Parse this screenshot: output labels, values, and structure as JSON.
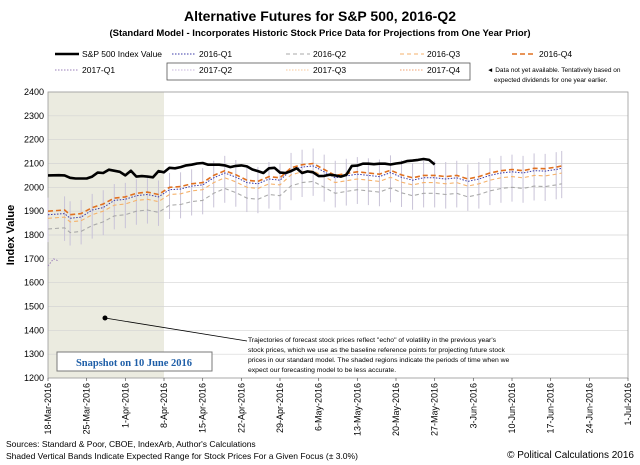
{
  "chart_data": {
    "type": "line",
    "title": "Alternative Futures for S&P 500, 2016-Q2",
    "subtitle": "(Standard Model - Incorporates Historic Stock Price Data for Projections from One Year Prior)",
    "ylabel": "Index Value",
    "xlabel": "",
    "ylim": [
      1200,
      2400
    ],
    "yticks": [
      "1200",
      "1300",
      "1400",
      "1500",
      "1600",
      "1700",
      "1800",
      "1900",
      "2000",
      "2100",
      "2200",
      "2300",
      "2400"
    ],
    "xticks": [
      "18-Mar-2016",
      "25-Mar-2016",
      "1-Apr-2016",
      "8-Apr-2016",
      "15-Apr-2016",
      "22-Apr-2016",
      "29-Apr-2016",
      "6-May-2016",
      "13-May-2016",
      "20-May-2016",
      "27-May-2016",
      "3-Jun-2016",
      "10-Jun-2016",
      "17-Jun-2016",
      "24-Jun-2016",
      "1-Jul-2016"
    ],
    "grid": true,
    "legend": "top",
    "legend_note": "Data not yet available.  Tentatively based on expected dividends for one year earlier.",
    "shaded_region": {
      "x_start": "18-Mar-2016",
      "x_end": "8-Apr-2016"
    },
    "annotation": "Trajectories of forecast stock prices reflect \"echo\" of volatility in the previous year's stock prices, which we use as the baseline reference points for projecting future stock prices in our standard model.  The shaded regions indicate the periods of time when we expect our forecasting model to be less accurate.",
    "annotation_lines": [
      "Trajectories of forecast stock prices reflect \"echo\" of volatility in  the previous year's",
      "stock prices, which we use as the baseline reference points for projecting future stock",
      "prices in our standard model.   The shaded regions indicate the periods of time when we",
      "expect our forecasting model to be less accurate."
    ],
    "snapshot_label": "Snapshot on 10 June 2016",
    "footer_lines": [
      "Sources: Standard & Poor, CBOE, IndexArb, Author's Calculations",
      "Shaded Vertical Bands Indicate Expected Range for Stock Prices For a Given Focus (± 3.0%)"
    ],
    "copyright": "© Political Calculations 2016",
    "series": [
      {
        "name": "S&P 500 Index Value",
        "color": "#000000",
        "style": "solid-thick",
        "points": [
          [
            0,
            2050
          ],
          [
            2,
            2051
          ],
          [
            3,
            2050
          ],
          [
            4,
            2040
          ],
          [
            5,
            2037
          ],
          [
            7,
            2037
          ],
          [
            8,
            2045
          ],
          [
            9,
            2062
          ],
          [
            10,
            2060
          ],
          [
            11,
            2074
          ],
          [
            13,
            2065
          ],
          [
            14,
            2050
          ],
          [
            15,
            2070
          ],
          [
            16,
            2045
          ],
          [
            17,
            2047
          ],
          [
            18,
            2045
          ],
          [
            19,
            2042
          ],
          [
            20,
            2068
          ],
          [
            21,
            2063
          ],
          [
            22,
            2082
          ],
          [
            23,
            2080
          ],
          [
            24,
            2085
          ],
          [
            25,
            2092
          ],
          [
            26,
            2095
          ],
          [
            27,
            2100
          ],
          [
            28,
            2102
          ],
          [
            29,
            2095
          ],
          [
            30,
            2095
          ],
          [
            31,
            2095
          ],
          [
            32,
            2092
          ],
          [
            33,
            2085
          ],
          [
            34,
            2090
          ],
          [
            35,
            2092
          ],
          [
            36,
            2088
          ],
          [
            37,
            2075
          ],
          [
            38,
            2068
          ],
          [
            39,
            2060
          ],
          [
            40,
            2080
          ],
          [
            41,
            2082
          ],
          [
            42,
            2062
          ],
          [
            43,
            2060
          ],
          [
            44,
            2068
          ],
          [
            45,
            2080
          ],
          [
            46,
            2060
          ],
          [
            47,
            2067
          ],
          [
            48,
            2063
          ],
          [
            49,
            2047
          ],
          [
            50,
            2048
          ],
          [
            51,
            2053
          ],
          [
            52,
            2050
          ],
          [
            53,
            2045
          ],
          [
            54,
            2052
          ],
          [
            55,
            2090
          ],
          [
            56,
            2091
          ],
          [
            57,
            2099
          ],
          [
            58,
            2099
          ],
          [
            59,
            2097
          ],
          [
            60,
            2099
          ],
          [
            61,
            2099
          ],
          [
            62,
            2096
          ],
          [
            63,
            2100
          ],
          [
            64,
            2103
          ],
          [
            65,
            2110
          ],
          [
            66,
            2112
          ],
          [
            67,
            2115
          ],
          [
            68,
            2119
          ],
          [
            69,
            2115
          ],
          [
            70,
            2096
          ]
        ]
      },
      {
        "name": "2016-Q1",
        "color": "#3b3ba8",
        "style": "dotted",
        "points": [
          [
            0,
            1885
          ],
          [
            3,
            1890
          ],
          [
            4,
            1870
          ],
          [
            6,
            1875
          ],
          [
            8,
            1905
          ],
          [
            10,
            1915
          ],
          [
            12,
            1945
          ],
          [
            14,
            1950
          ],
          [
            16,
            1965
          ],
          [
            18,
            1970
          ],
          [
            20,
            1960
          ],
          [
            22,
            1990
          ],
          [
            24,
            1993
          ],
          [
            26,
            2005
          ],
          [
            28,
            2010
          ],
          [
            30,
            2040
          ],
          [
            32,
            2060
          ],
          [
            34,
            2043
          ],
          [
            36,
            2020
          ],
          [
            38,
            2015
          ],
          [
            40,
            2035
          ],
          [
            42,
            2030
          ],
          [
            44,
            2072
          ],
          [
            46,
            2085
          ],
          [
            48,
            2090
          ],
          [
            50,
            2065
          ],
          [
            52,
            2040
          ],
          [
            54,
            2048
          ],
          [
            56,
            2055
          ],
          [
            58,
            2050
          ],
          [
            60,
            2045
          ],
          [
            62,
            2062
          ],
          [
            64,
            2042
          ],
          [
            66,
            2030
          ],
          [
            68,
            2040
          ],
          [
            70,
            2040
          ],
          [
            72,
            2035
          ],
          [
            74,
            2040
          ],
          [
            76,
            2025
          ],
          [
            78,
            2035
          ],
          [
            80,
            2050
          ],
          [
            82,
            2060
          ],
          [
            84,
            2065
          ],
          [
            86,
            2060
          ],
          [
            88,
            2070
          ],
          [
            90,
            2068
          ],
          [
            92,
            2075
          ],
          [
            93,
            2080
          ]
        ]
      },
      {
        "name": "2016-Q2",
        "color": "#aaaaaa",
        "style": "dashed",
        "points": [
          [
            0,
            1825
          ],
          [
            3,
            1830
          ],
          [
            4,
            1810
          ],
          [
            6,
            1815
          ],
          [
            8,
            1840
          ],
          [
            10,
            1855
          ],
          [
            12,
            1880
          ],
          [
            14,
            1885
          ],
          [
            16,
            1900
          ],
          [
            18,
            1905
          ],
          [
            20,
            1895
          ],
          [
            22,
            1925
          ],
          [
            24,
            1928
          ],
          [
            26,
            1940
          ],
          [
            28,
            1945
          ],
          [
            30,
            1975
          ],
          [
            32,
            1995
          ],
          [
            34,
            1978
          ],
          [
            36,
            1955
          ],
          [
            38,
            1950
          ],
          [
            40,
            1970
          ],
          [
            42,
            1965
          ],
          [
            44,
            2006
          ],
          [
            46,
            2020
          ],
          [
            48,
            2025
          ],
          [
            50,
            2000
          ],
          [
            52,
            1975
          ],
          [
            54,
            1983
          ],
          [
            56,
            1990
          ],
          [
            58,
            1985
          ],
          [
            60,
            1980
          ],
          [
            62,
            1997
          ],
          [
            64,
            1977
          ],
          [
            66,
            1965
          ],
          [
            68,
            1975
          ],
          [
            70,
            1975
          ],
          [
            72,
            1970
          ],
          [
            74,
            1975
          ],
          [
            76,
            1960
          ],
          [
            78,
            1970
          ],
          [
            80,
            1985
          ],
          [
            82,
            1995
          ],
          [
            84,
            2000
          ],
          [
            86,
            1995
          ],
          [
            88,
            2005
          ],
          [
            90,
            2003
          ],
          [
            92,
            2010
          ],
          [
            93,
            2015
          ]
        ]
      },
      {
        "name": "2016-Q3",
        "color": "#f5b26b",
        "style": "dashed",
        "points": [
          [
            0,
            1870
          ],
          [
            3,
            1875
          ],
          [
            4,
            1855
          ],
          [
            6,
            1860
          ],
          [
            8,
            1885
          ],
          [
            10,
            1900
          ],
          [
            12,
            1925
          ],
          [
            14,
            1930
          ],
          [
            16,
            1945
          ],
          [
            18,
            1950
          ],
          [
            20,
            1940
          ],
          [
            22,
            1970
          ],
          [
            24,
            1973
          ],
          [
            26,
            1985
          ],
          [
            28,
            1990
          ],
          [
            30,
            2020
          ],
          [
            32,
            2040
          ],
          [
            34,
            2023
          ],
          [
            36,
            2000
          ],
          [
            38,
            1995
          ],
          [
            40,
            2015
          ],
          [
            42,
            2010
          ],
          [
            44,
            2052
          ],
          [
            46,
            2065
          ],
          [
            48,
            2070
          ],
          [
            50,
            2045
          ],
          [
            52,
            2020
          ],
          [
            54,
            2028
          ],
          [
            56,
            2035
          ],
          [
            58,
            2030
          ],
          [
            60,
            2025
          ],
          [
            62,
            2042
          ],
          [
            64,
            2022
          ],
          [
            66,
            2010
          ],
          [
            68,
            2020
          ],
          [
            70,
            2020
          ],
          [
            72,
            2015
          ],
          [
            74,
            2020
          ],
          [
            76,
            2005
          ],
          [
            78,
            2015
          ],
          [
            80,
            2030
          ],
          [
            82,
            2040
          ],
          [
            84,
            2045
          ],
          [
            86,
            2040
          ],
          [
            88,
            2050
          ],
          [
            90,
            2048
          ],
          [
            92,
            2055
          ],
          [
            93,
            2060
          ]
        ]
      },
      {
        "name": "2016-Q4",
        "color": "#e07020",
        "style": "dashed-thick",
        "points": [
          [
            0,
            1900
          ],
          [
            3,
            1905
          ],
          [
            4,
            1885
          ],
          [
            6,
            1890
          ],
          [
            8,
            1915
          ],
          [
            10,
            1930
          ],
          [
            12,
            1955
          ],
          [
            14,
            1960
          ],
          [
            16,
            1975
          ],
          [
            18,
            1980
          ],
          [
            20,
            1970
          ],
          [
            22,
            2000
          ],
          [
            24,
            2003
          ],
          [
            26,
            2015
          ],
          [
            28,
            2020
          ],
          [
            30,
            2050
          ],
          [
            32,
            2070
          ],
          [
            34,
            2053
          ],
          [
            36,
            2030
          ],
          [
            38,
            2025
          ],
          [
            40,
            2045
          ],
          [
            42,
            2040
          ],
          [
            44,
            2082
          ],
          [
            46,
            2095
          ],
          [
            48,
            2100
          ],
          [
            50,
            2075
          ],
          [
            52,
            2050
          ],
          [
            54,
            2058
          ],
          [
            56,
            2065
          ],
          [
            58,
            2060
          ],
          [
            60,
            2055
          ],
          [
            62,
            2072
          ],
          [
            64,
            2052
          ],
          [
            66,
            2040
          ],
          [
            68,
            2050
          ],
          [
            70,
            2050
          ],
          [
            72,
            2045
          ],
          [
            74,
            2050
          ],
          [
            76,
            2035
          ],
          [
            78,
            2045
          ],
          [
            80,
            2060
          ],
          [
            82,
            2070
          ],
          [
            84,
            2075
          ],
          [
            86,
            2070
          ],
          [
            88,
            2080
          ],
          [
            90,
            2078
          ],
          [
            92,
            2085
          ],
          [
            93,
            2090
          ]
        ]
      },
      {
        "name": "2017-Q1",
        "color": "#9a7fb8",
        "style": "dotted",
        "points": [
          [
            0,
            1670
          ],
          [
            1,
            1700
          ],
          [
            2,
            1690
          ]
        ]
      },
      {
        "name": "2017-Q2",
        "color": "#c8b6dc",
        "style": "dotted",
        "points": []
      },
      {
        "name": "2017-Q3",
        "color": "#f8c89a",
        "style": "dotted",
        "points": []
      },
      {
        "name": "2017-Q4",
        "color": "#f0a070",
        "style": "dotted",
        "points": []
      }
    ]
  }
}
